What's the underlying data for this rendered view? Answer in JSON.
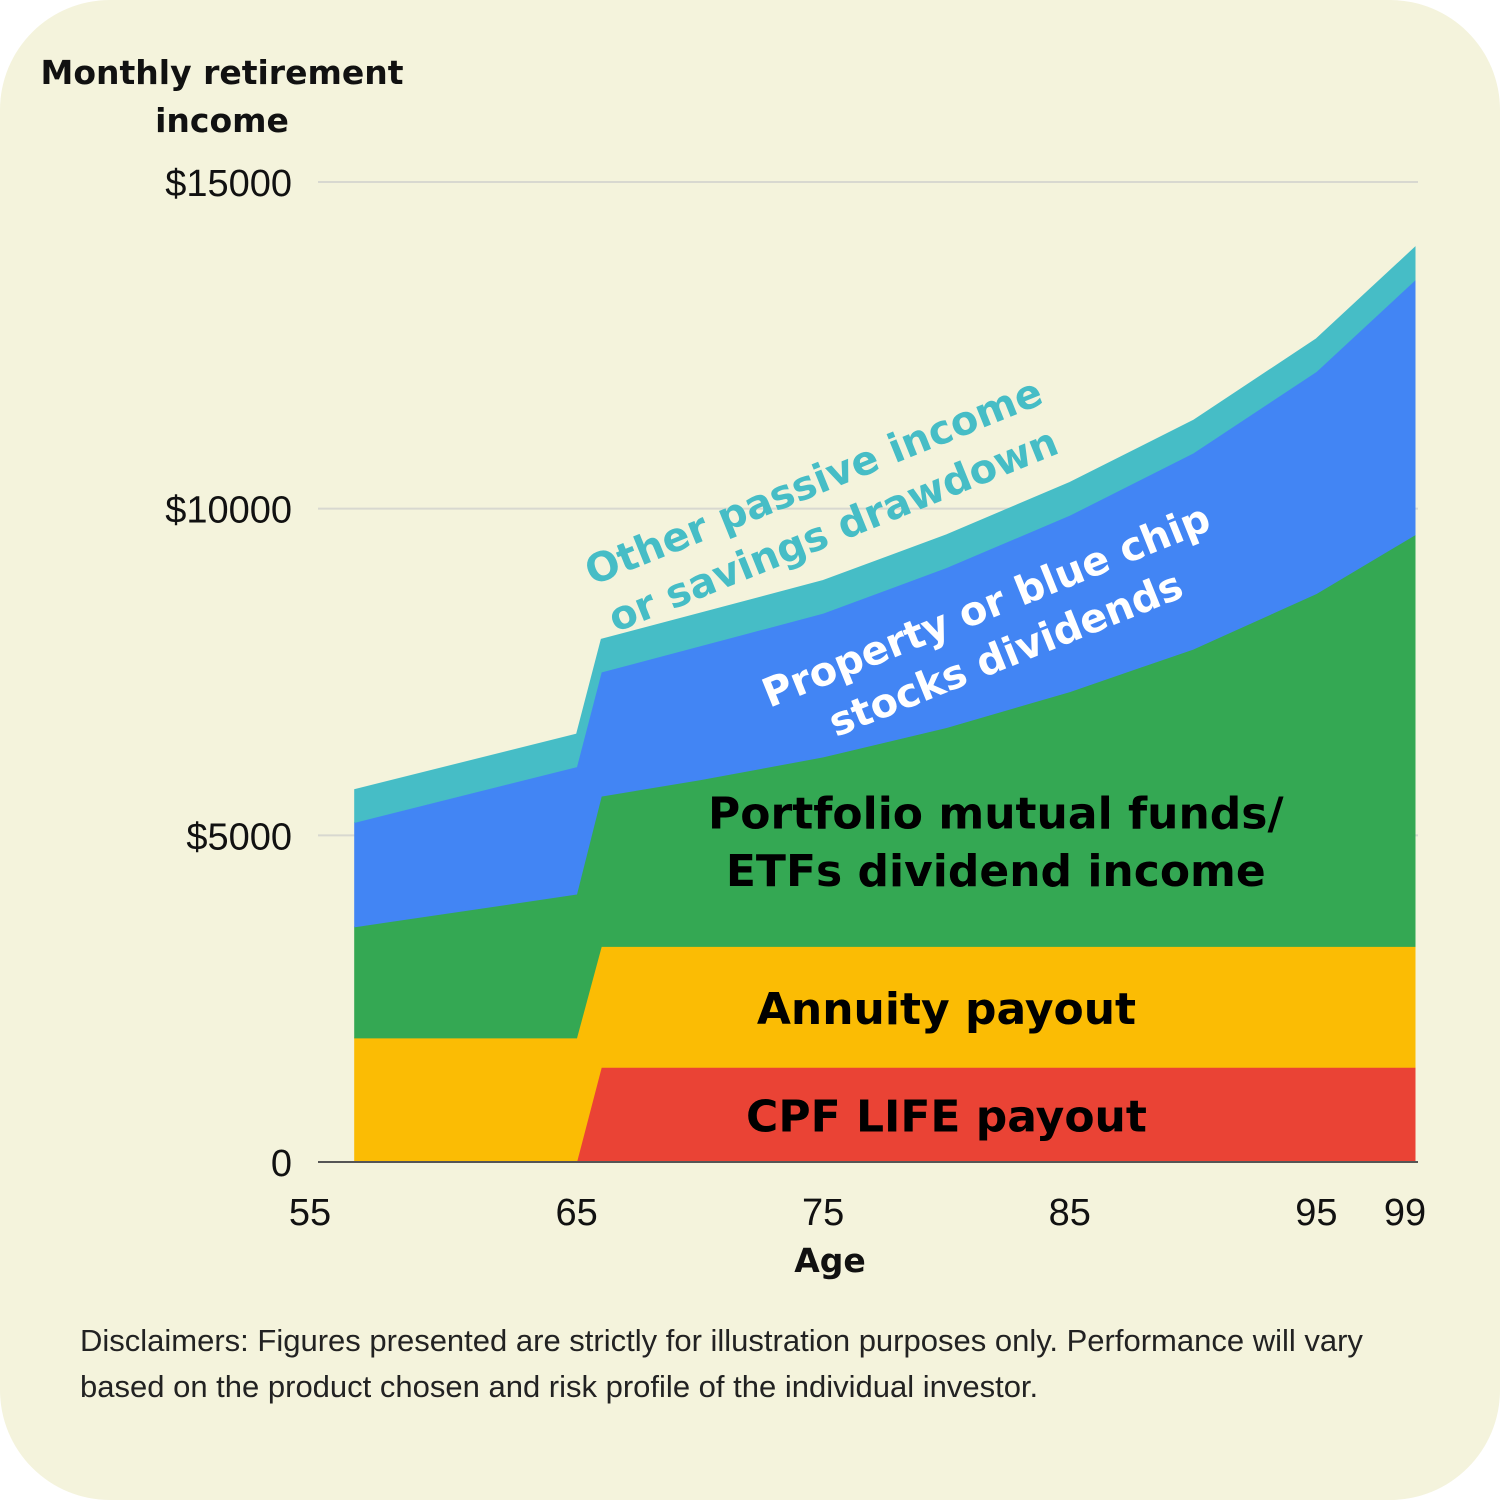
{
  "chart_data": {
    "type": "area",
    "ylabel_lines": [
      "Monthly retirement",
      "income"
    ],
    "xlabel": "Age",
    "ylim": [
      0,
      15000
    ],
    "xlim": [
      55,
      99
    ],
    "y_ticks": [
      {
        "value": 0,
        "label": "0"
      },
      {
        "value": 5000,
        "label": "$5000"
      },
      {
        "value": 10000,
        "label": "$10000"
      },
      {
        "value": 15000,
        "label": "$15000"
      }
    ],
    "x_ticks": [
      {
        "value": 55,
        "label": "55"
      },
      {
        "value": 65,
        "label": "65"
      },
      {
        "value": 75,
        "label": "75"
      },
      {
        "value": 85,
        "label": "85"
      },
      {
        "value": 95,
        "label": "95"
      },
      {
        "value": 99,
        "label": "99"
      }
    ],
    "grid": true,
    "x": [
      56,
      65,
      66,
      70,
      75,
      80,
      85,
      90,
      95,
      99
    ],
    "series": [
      {
        "name": "CPF LIFE payout",
        "color": "#ea4335",
        "text_color": "#000000",
        "values": [
          0,
          0,
          1450,
          1450,
          1450,
          1450,
          1450,
          1450,
          1450,
          1450
        ]
      },
      {
        "name": "Annuity payout",
        "color": "#fbbc04",
        "text_color": "#000000",
        "values": [
          1900,
          1900,
          1850,
          1850,
          1850,
          1850,
          1850,
          1850,
          1850,
          1850
        ]
      },
      {
        "name": "Portfolio mutual funds/ ETFs dividend income",
        "color": "#34a853",
        "text_color": "#000000",
        "values": [
          1700,
          2200,
          2300,
          2550,
          2900,
          3350,
          3900,
          4550,
          5400,
          6300
        ]
      },
      {
        "name": "Property or blue chip stocks dividends",
        "color": "#4285f4",
        "text_color": "#ffffff",
        "values": [
          1600,
          1950,
          1900,
          2050,
          2200,
          2450,
          2700,
          3000,
          3400,
          3900
        ]
      },
      {
        "name": "Other passive income or savings drawdown",
        "color": "#46bdc6",
        "text_color": "#46bdc6",
        "values": [
          500,
          500,
          500,
          500,
          500,
          500,
          500,
          500,
          500,
          500
        ]
      }
    ],
    "area_labels": [
      {
        "lines": [
          "CPF LIFE payout"
        ],
        "x": 80,
        "y": 700,
        "rotation": 0,
        "size": 44,
        "color": "#000000"
      },
      {
        "lines": [
          "Annuity payout"
        ],
        "x": 80,
        "y": 2350,
        "rotation": 0,
        "size": 44,
        "color": "#000000"
      },
      {
        "lines": [
          "Portfolio mutual funds/",
          "ETFs dividend income"
        ],
        "x": 82,
        "y": 4900,
        "rotation": 0,
        "size": 44,
        "color": "#000000"
      },
      {
        "lines": [
          "Property or blue chip",
          "stocks dividends"
        ],
        "x": 82,
        "y": 8150,
        "rotation": -22,
        "size": 40,
        "color": "#ffffff"
      },
      {
        "lines": [
          "Other passive income",
          "or savings drawdown"
        ],
        "x": 75,
        "y": 10050,
        "rotation": -22,
        "size": 40,
        "color": "#46bdc6"
      }
    ]
  },
  "disclaimer": "Disclaimers: Figures presented are strictly for illustration purposes only. Performance will vary based on the product chosen and risk profile of the individual investor."
}
